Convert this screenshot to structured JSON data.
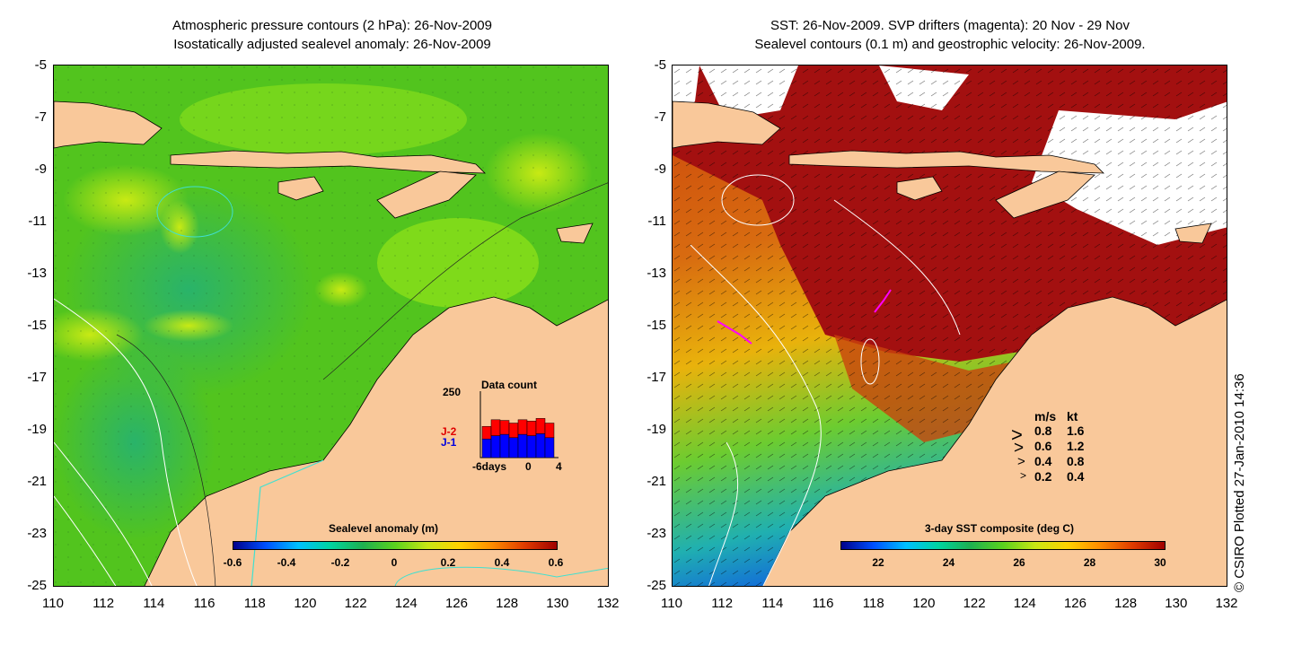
{
  "left_panel": {
    "title_line1": "Atmospheric pressure contours (2 hPa): 26-Nov-2009",
    "title_line2": "Isostatically adjusted sealevel anomaly: 26-Nov-2009",
    "colorbar_title": "Sealevel anomaly (m)",
    "colorbar_ticks": [
      "-0.6",
      "-0.4",
      "-0.2",
      "0",
      "0.2",
      "0.4",
      "0.6"
    ],
    "inset": {
      "title": "Data count",
      "ymax": "250",
      "series_j2": "J-2",
      "series_j1": "J-1",
      "xlabel_left": "-6days",
      "xlabel_mid": "0",
      "xlabel_right": "4",
      "bars_j1": [
        0.28,
        0.33,
        0.35,
        0.3,
        0.35,
        0.33,
        0.36,
        0.3
      ],
      "bars_j2": [
        0.19,
        0.24,
        0.21,
        0.22,
        0.22,
        0.22,
        0.23,
        0.22
      ]
    }
  },
  "right_panel": {
    "title_line1": "SST: 26-Nov-2009. SVP drifters (magenta): 20 Nov - 29 Nov",
    "title_line2": "Sealevel contours (0.1 m) and geostrophic velocity: 26-Nov-2009.",
    "colorbar_title": "3-day SST composite (deg C)",
    "colorbar_ticks": [
      "22",
      "24",
      "26",
      "28",
      "30"
    ],
    "velocity_legend": {
      "header_ms": "m/s",
      "header_kt": "kt",
      "rows": [
        {
          "ms": "0.8",
          "kt": "1.6"
        },
        {
          "ms": "0.6",
          "kt": "1.2"
        },
        {
          "ms": "0.4",
          "kt": "0.8"
        },
        {
          "ms": "0.2",
          "kt": "0.4"
        }
      ]
    }
  },
  "axes": {
    "y_ticks": [
      "-5",
      "-7",
      "-9",
      "-11",
      "-13",
      "-15",
      "-17",
      "-19",
      "-21",
      "-23",
      "-25"
    ],
    "x_ticks": [
      "110",
      "112",
      "114",
      "116",
      "118",
      "120",
      "122",
      "124",
      "126",
      "128",
      "130",
      "132"
    ]
  },
  "copyright": "© CSIRO Plotted 27-Jan-2010 14:36",
  "colors": {
    "land": "#f9c89a",
    "sla_green": "#4fc41f",
    "sla_light": "#8ee61a",
    "sst_red": "#a10f0f",
    "sst_orange": "#d8690c"
  }
}
